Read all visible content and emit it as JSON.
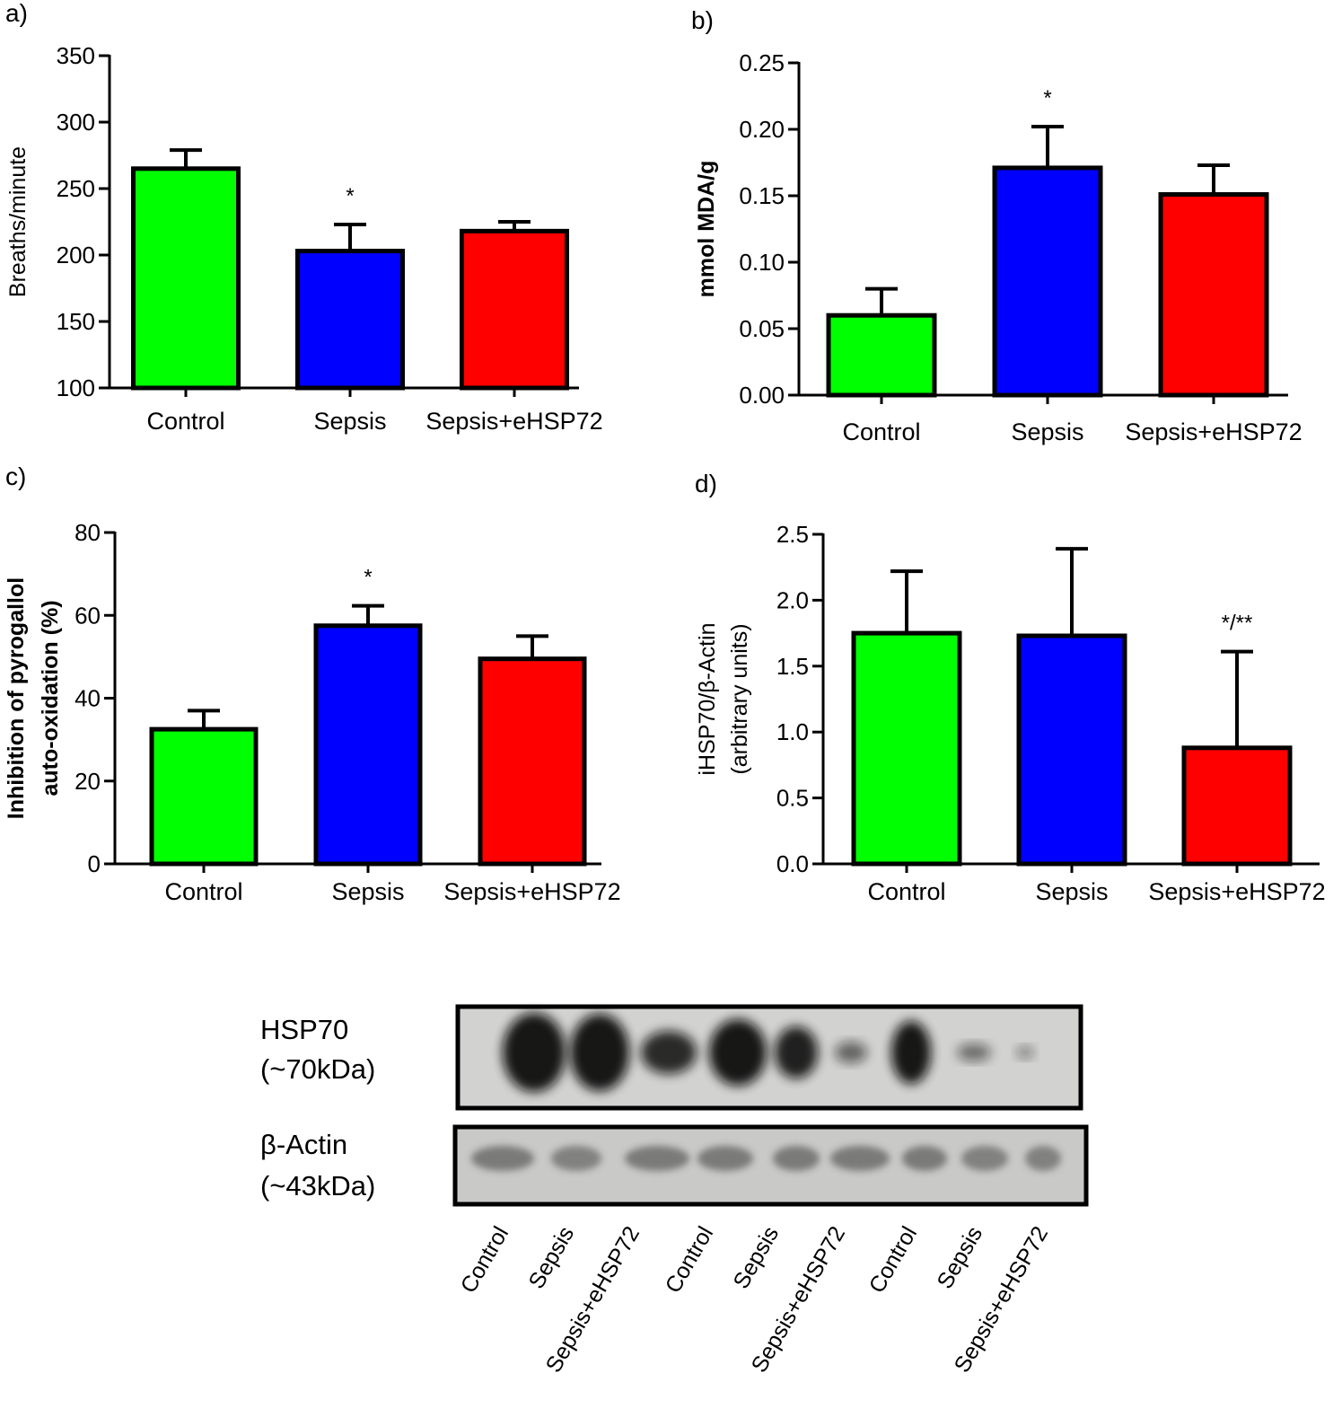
{
  "chart_data": [
    {
      "panel": "a)",
      "type": "bar",
      "categories": [
        "Control",
        "Sepsis",
        "Sepsis+eHSP72"
      ],
      "values": [
        265,
        203,
        218
      ],
      "errors": [
        14,
        20,
        7
      ],
      "significance": [
        "",
        "*",
        ""
      ],
      "colors": [
        "#00ff00",
        "#0000ff",
        "#ff0000"
      ],
      "ylabel": "Breaths/minute",
      "ylabel_bold": false,
      "ylim": [
        100,
        350
      ],
      "yticks": [
        100,
        150,
        200,
        250,
        300,
        350
      ],
      "ytick_labels": [
        "100",
        "150",
        "200",
        "250",
        "300",
        "350"
      ]
    },
    {
      "panel": "b)",
      "type": "bar",
      "categories": [
        "Control",
        "Sepsis",
        "Sepsis+eHSP72"
      ],
      "values": [
        0.06,
        0.171,
        0.151
      ],
      "errors": [
        0.02,
        0.031,
        0.022
      ],
      "significance": [
        "",
        "*",
        ""
      ],
      "colors": [
        "#00ff00",
        "#0000ff",
        "#ff0000"
      ],
      "ylabel": "mmol MDA/g",
      "ylabel_bold": true,
      "ylim": [
        0,
        0.25
      ],
      "yticks": [
        0,
        0.05,
        0.1,
        0.15,
        0.2,
        0.25
      ],
      "ytick_labels": [
        "0.00",
        "0.05",
        "0.10",
        "0.15",
        "0.20",
        "0.25"
      ]
    },
    {
      "panel": "c)",
      "type": "bar",
      "categories": [
        "Control",
        "Sepsis",
        "Sepsis+eHSP72"
      ],
      "values": [
        32.5,
        57.5,
        49.5
      ],
      "errors": [
        4.5,
        4.8,
        5.5
      ],
      "significance": [
        "",
        "*",
        ""
      ],
      "colors": [
        "#00ff00",
        "#0000ff",
        "#ff0000"
      ],
      "ylabel": "Inhibition of pyrogallol",
      "ylabel2": "auto-oxidation (%)",
      "ylabel_bold": true,
      "ylim": [
        0,
        80
      ],
      "yticks": [
        0,
        20,
        40,
        60,
        80
      ],
      "ytick_labels": [
        "0",
        "20",
        "40",
        "60",
        "80"
      ]
    },
    {
      "panel": "d)",
      "type": "bar",
      "categories": [
        "Control",
        "Sepsis",
        "Sepsis+eHSP72"
      ],
      "values": [
        1.75,
        1.73,
        0.88
      ],
      "errors": [
        0.47,
        0.66,
        0.73
      ],
      "significance": [
        "",
        "",
        "*/**"
      ],
      "colors": [
        "#00ff00",
        "#0000ff",
        "#ff0000"
      ],
      "ylabel": "iHSP70/β-Actin",
      "ylabel2": "(arbitrary units)",
      "ylabel_bold": false,
      "ylim": [
        0,
        2.5
      ],
      "yticks": [
        0,
        0.5,
        1,
        1.5,
        2,
        2.5
      ],
      "ytick_labels": [
        "0.0",
        "0.5",
        "1.0",
        "1.5",
        "2.0",
        "2.5"
      ]
    }
  ],
  "blot": {
    "hsp70_label": "HSP70",
    "hsp70_size": "(~70kDa)",
    "actin_label": "β-Actin",
    "actin_size": "(~43kDa)",
    "lanes": [
      "Control",
      "Sepsis",
      "Sepsis+eHSP72",
      "Control",
      "Sepsis",
      "Sepsis+eHSP72",
      "Control",
      "Sepsis",
      "Sepsis+eHSP72"
    ]
  }
}
